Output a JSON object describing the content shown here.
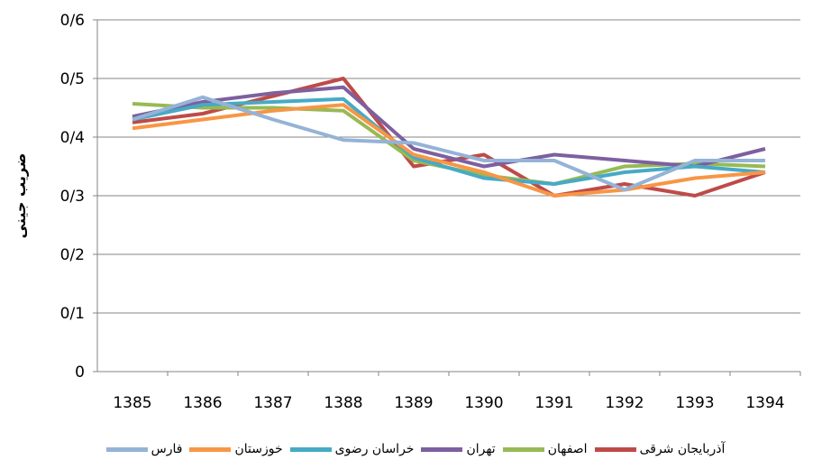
{
  "chart_data": {
    "type": "line",
    "y_label": "ضریب جینی",
    "categories": [
      "1385",
      "1386",
      "1387",
      "1388",
      "1389",
      "1390",
      "1391",
      "1392",
      "1393",
      "1394"
    ],
    "ylim": [
      0,
      0.6
    ],
    "yticks": [
      0,
      {
        "value": 0.1,
        "label": "0/1"
      },
      {
        "value": 0.2,
        "label": "0/2"
      },
      {
        "value": 0.3,
        "label": "0/3"
      },
      {
        "value": 0.4,
        "label": "0/4"
      },
      {
        "value": 0.5,
        "label": "0/5"
      },
      {
        "value": 0.6,
        "label": "0/6"
      }
    ],
    "grid": true,
    "series": [
      {
        "name": "آذربایجان شرقی",
        "color": "#be4b48",
        "values": [
          0.425,
          0.44,
          0.47,
          0.5,
          0.35,
          0.37,
          0.3,
          0.32,
          0.3,
          0.34
        ]
      },
      {
        "name": "اصفهان",
        "color": "#98b954",
        "values": [
          0.457,
          0.45,
          0.45,
          0.445,
          0.36,
          0.335,
          0.32,
          0.35,
          0.355,
          0.35
        ]
      },
      {
        "name": "تهران",
        "color": "#7d60a0",
        "values": [
          0.435,
          0.46,
          0.475,
          0.485,
          0.38,
          0.35,
          0.37,
          0.36,
          0.35,
          0.38
        ]
      },
      {
        "name": "خراسان رضوی",
        "color": "#46aac5",
        "values": [
          0.43,
          0.455,
          0.46,
          0.465,
          0.365,
          0.33,
          0.32,
          0.34,
          0.35,
          0.34
        ]
      },
      {
        "name": "خوزستان",
        "color": "#f79646",
        "values": [
          0.415,
          0.43,
          0.445,
          0.455,
          0.37,
          0.34,
          0.3,
          0.31,
          0.33,
          0.34
        ]
      },
      {
        "name": "فارس",
        "color": "#95b3d7",
        "values": [
          0.43,
          0.468,
          0.43,
          0.395,
          0.39,
          0.36,
          0.36,
          0.31,
          0.36,
          0.36
        ]
      }
    ]
  }
}
